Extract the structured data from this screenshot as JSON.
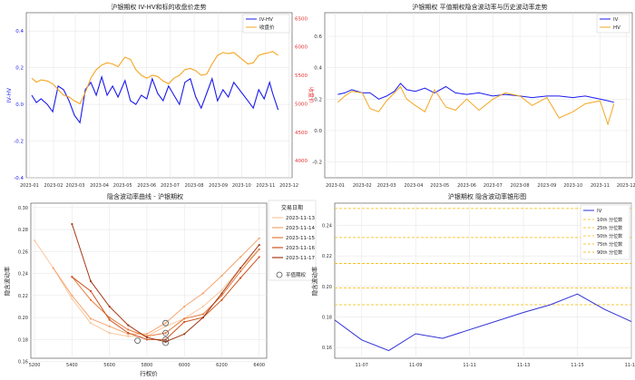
{
  "chart_data": [
    {
      "type": "line",
      "title": "沪银期权 IV-HV和标的收盘价走势",
      "xlabel": "",
      "ylabel": "IV-HV",
      "y2label": "收盘价",
      "ylim": [
        -0.4,
        0.5
      ],
      "yticks": [
        -0.4,
        -0.2,
        0.0,
        0.2,
        0.4
      ],
      "y2lim": [
        3700,
        6600
      ],
      "y2ticks": [
        4000,
        4500,
        5000,
        5500,
        6000,
        6500
      ],
      "xlim": [
        "2022-12-28",
        "2023-12-05"
      ],
      "xticks": [
        "2023-01",
        "2023-02",
        "2023-03",
        "2023-04",
        "2023-05",
        "2023-06",
        "2023-07",
        "2023-08",
        "2023-09",
        "2023-10",
        "2023-11",
        "2023-12"
      ],
      "grid": true,
      "legend": "top-right",
      "series": [
        {
          "name": "IV-HV",
          "color": "#1a1aee",
          "axis": "left",
          "x": [
            "2023-01-04",
            "2023-01-10",
            "2023-01-16",
            "2023-01-24",
            "2023-01-31",
            "2023-02-07",
            "2023-02-14",
            "2023-02-21",
            "2023-02-28",
            "2023-03-07",
            "2023-03-14",
            "2023-03-21",
            "2023-03-28",
            "2023-04-04",
            "2023-04-11",
            "2023-04-18",
            "2023-04-25",
            "2023-05-04",
            "2023-05-11",
            "2023-05-18",
            "2023-05-25",
            "2023-06-01",
            "2023-06-08",
            "2023-06-15",
            "2023-06-22",
            "2023-06-29",
            "2023-07-06",
            "2023-07-13",
            "2023-07-20",
            "2023-07-27",
            "2023-08-03",
            "2023-08-10",
            "2023-08-17",
            "2023-08-24",
            "2023-08-31",
            "2023-09-07",
            "2023-09-14",
            "2023-09-21",
            "2023-10-09",
            "2023-10-16",
            "2023-10-23",
            "2023-10-30",
            "2023-11-06",
            "2023-11-10",
            "2023-11-17"
          ],
          "values": [
            0.05,
            0.01,
            0.03,
            0.0,
            -0.04,
            0.1,
            0.08,
            0.02,
            -0.06,
            -0.1,
            0.08,
            0.12,
            0.05,
            0.15,
            0.05,
            0.1,
            0.04,
            0.13,
            0.02,
            0.0,
            0.05,
            0.03,
            0.14,
            0.06,
            0.02,
            0.1,
            0.05,
            0.0,
            0.12,
            0.14,
            0.04,
            -0.02,
            0.06,
            0.14,
            0.02,
            0.08,
            0.04,
            0.12,
            0.02,
            -0.02,
            0.08,
            0.03,
            0.12,
            0.06,
            -0.03
          ]
        },
        {
          "name": "收盘价",
          "color": "#f5a623",
          "axis": "right",
          "x": [
            "2023-01-04",
            "2023-01-10",
            "2023-01-16",
            "2023-01-24",
            "2023-01-31",
            "2023-02-07",
            "2023-02-14",
            "2023-02-21",
            "2023-02-28",
            "2023-03-07",
            "2023-03-14",
            "2023-03-21",
            "2023-03-28",
            "2023-04-04",
            "2023-04-11",
            "2023-04-18",
            "2023-04-25",
            "2023-05-04",
            "2023-05-11",
            "2023-05-18",
            "2023-05-25",
            "2023-06-01",
            "2023-06-08",
            "2023-06-15",
            "2023-06-22",
            "2023-06-29",
            "2023-07-06",
            "2023-07-13",
            "2023-07-20",
            "2023-07-27",
            "2023-08-03",
            "2023-08-10",
            "2023-08-17",
            "2023-08-24",
            "2023-08-31",
            "2023-09-07",
            "2023-09-14",
            "2023-09-21",
            "2023-10-09",
            "2023-10-16",
            "2023-10-23",
            "2023-10-30",
            "2023-11-06",
            "2023-11-10",
            "2023-11-17"
          ],
          "values": [
            5450,
            5380,
            5420,
            5400,
            5350,
            5250,
            5150,
            5120,
            5050,
            5000,
            5200,
            5450,
            5600,
            5680,
            5720,
            5700,
            5650,
            5820,
            5780,
            5600,
            5500,
            5450,
            5500,
            5480,
            5400,
            5350,
            5450,
            5500,
            5600,
            5620,
            5580,
            5500,
            5520,
            5700,
            5850,
            5900,
            5880,
            5900,
            5700,
            5720,
            5850,
            5880,
            5900,
            5920,
            5850
          ]
        }
      ]
    },
    {
      "type": "line",
      "title": "沪银期权 平值期权隐含波动率与历史波动率走势",
      "xlabel": "",
      "ylabel": "",
      "ylim": [
        -0.3,
        0.75
      ],
      "yticks": [
        -0.2,
        0.0,
        0.2,
        0.4,
        0.6
      ],
      "xlim": [
        "2022-12-20",
        "2023-12-08"
      ],
      "xticks": [
        "2023-01",
        "2023-02",
        "2023-03",
        "2023-04",
        "2023-05",
        "2023-06",
        "2023-07",
        "2023-08",
        "2023-09",
        "2023-10",
        "2023-11",
        "2023-12"
      ],
      "grid": true,
      "legend": "top-right",
      "series": [
        {
          "name": "IV",
          "color": "#1a1aee",
          "x": [
            "2023-01-04",
            "2023-01-12",
            "2023-01-20",
            "2023-02-01",
            "2023-02-10",
            "2023-02-20",
            "2023-03-01",
            "2023-03-10",
            "2023-03-17",
            "2023-03-24",
            "2023-04-03",
            "2023-04-14",
            "2023-04-25",
            "2023-05-08",
            "2023-05-19",
            "2023-06-01",
            "2023-06-15",
            "2023-07-01",
            "2023-07-15",
            "2023-08-01",
            "2023-08-15",
            "2023-09-01",
            "2023-09-15",
            "2023-10-01",
            "2023-10-15",
            "2023-11-01",
            "2023-11-10",
            "2023-11-17"
          ],
          "values": [
            0.23,
            0.24,
            0.26,
            0.24,
            0.24,
            0.2,
            0.22,
            0.25,
            0.3,
            0.26,
            0.25,
            0.27,
            0.24,
            0.28,
            0.24,
            0.23,
            0.24,
            0.22,
            0.23,
            0.22,
            0.21,
            0.22,
            0.22,
            0.21,
            0.22,
            0.2,
            0.19,
            0.18
          ]
        },
        {
          "name": "HV",
          "color": "#f5a623",
          "x": [
            "2023-01-04",
            "2023-01-12",
            "2023-01-20",
            "2023-02-01",
            "2023-02-10",
            "2023-02-20",
            "2023-03-01",
            "2023-03-10",
            "2023-03-17",
            "2023-03-24",
            "2023-04-03",
            "2023-04-14",
            "2023-04-25",
            "2023-05-08",
            "2023-05-19",
            "2023-06-01",
            "2023-06-15",
            "2023-07-01",
            "2023-07-15",
            "2023-08-01",
            "2023-08-15",
            "2023-09-01",
            "2023-09-15",
            "2023-10-01",
            "2023-10-15",
            "2023-11-01",
            "2023-11-10",
            "2023-11-17"
          ],
          "values": [
            0.18,
            0.22,
            0.25,
            0.24,
            0.14,
            0.12,
            0.19,
            0.24,
            0.28,
            0.2,
            0.16,
            0.12,
            0.26,
            0.15,
            0.13,
            0.2,
            0.13,
            0.2,
            0.24,
            0.22,
            0.16,
            0.21,
            0.08,
            0.12,
            0.17,
            0.19,
            0.04,
            0.17
          ]
        }
      ]
    },
    {
      "type": "line",
      "title": "隐含波动率曲线 - 沪银期权",
      "xlabel": "行权价",
      "ylabel": "隐含波动率",
      "xlim": [
        5180,
        6440
      ],
      "xticks": [
        5200,
        5400,
        5600,
        5800,
        6000,
        6200,
        6400
      ],
      "ylim": [
        0.163,
        0.304
      ],
      "yticks": [
        0.16,
        0.18,
        0.2,
        0.22,
        0.24,
        0.26,
        0.28,
        0.3
      ],
      "grid": true,
      "legend_title": "交易日期",
      "legend": "top-right",
      "atm_label": "平值期权",
      "series": [
        {
          "name": "2023-11-13",
          "color": "#f9c79d",
          "x": [
            5200,
            5300,
            5400,
            5500,
            5600,
            5700,
            5800,
            5900,
            6000,
            6100,
            6200,
            6300,
            6400
          ],
          "y": [
            0.27,
            0.245,
            0.217,
            0.195,
            0.186,
            0.183,
            0.183,
            0.192,
            0.199,
            0.21,
            0.225,
            0.245,
            0.262
          ],
          "atm": [
            5750,
            0.179
          ]
        },
        {
          "name": "2023-11-14",
          "color": "#f6a56e",
          "x": [
            5300,
            5400,
            5500,
            5600,
            5700,
            5800,
            5900,
            6000,
            6100,
            6200,
            6300,
            6400
          ],
          "y": [
            0.245,
            0.22,
            0.199,
            0.192,
            0.185,
            0.185,
            0.195,
            0.21,
            0.222,
            0.238,
            0.255,
            0.272
          ],
          "atm": [
            5900,
            0.195
          ]
        },
        {
          "name": "2023-11-15",
          "color": "#e57b3b",
          "x": [
            5400,
            5500,
            5600,
            5700,
            5800,
            5900,
            6000,
            6100,
            6200,
            6300,
            6400
          ],
          "y": [
            0.237,
            0.216,
            0.2,
            0.189,
            0.183,
            0.186,
            0.199,
            0.203,
            0.22,
            0.242,
            0.262
          ],
          "atm": [
            5900,
            0.186
          ]
        },
        {
          "name": "2023-11-16",
          "color": "#cc5522",
          "x": [
            5400,
            5500,
            5600,
            5700,
            5800,
            5900,
            6000,
            6100,
            6200,
            6300,
            6400
          ],
          "y": [
            0.237,
            0.224,
            0.198,
            0.186,
            0.18,
            0.18,
            0.196,
            0.2,
            0.216,
            0.236,
            0.255
          ],
          "atm": [
            5900,
            0.18
          ]
        },
        {
          "name": "2023-11-17",
          "color": "#a33a17",
          "x": [
            5400,
            5500,
            5600,
            5700,
            5800,
            5900,
            6000,
            6100,
            6200,
            6300,
            6400
          ],
          "y": [
            0.285,
            0.233,
            0.21,
            0.193,
            0.182,
            0.178,
            0.185,
            0.2,
            0.222,
            0.245,
            0.266
          ],
          "atm": [
            5900,
            0.177
          ]
        }
      ]
    },
    {
      "type": "line",
      "title": "沪银期权 隐含波动率锥形图",
      "xlabel": "",
      "ylabel": "隐含波动率",
      "xlim": [
        "2023-11-06",
        "2023-11-17"
      ],
      "xticks": [
        "11-07",
        "11-09",
        "11-11",
        "11-13",
        "11-15",
        "11-17"
      ],
      "ylim": [
        0.153,
        0.2545
      ],
      "yticks": [
        0.16,
        0.18,
        0.2,
        0.22,
        0.24
      ],
      "grid": true,
      "legend": "top-right",
      "series": [
        {
          "name": "IV",
          "color": "#3030d8",
          "x": [
            "2023-11-06",
            "2023-11-07",
            "2023-11-08",
            "2023-11-09",
            "2023-11-10",
            "2023-11-13",
            "2023-11-14",
            "2023-11-15",
            "2023-11-16",
            "2023-11-17"
          ],
          "y": [
            0.178,
            0.165,
            0.158,
            0.169,
            0.166,
            0.183,
            0.188,
            0.195,
            0.185,
            0.177
          ]
        }
      ],
      "percentiles": [
        {
          "name": "10th 分位数",
          "value": 0.188
        },
        {
          "name": "25th 分位数",
          "value": 0.199
        },
        {
          "name": "50th 分位数",
          "value": 0.215
        },
        {
          "name": "75th 分位数",
          "value": 0.232
        },
        {
          "name": "90th 分位数",
          "value": 0.251
        }
      ],
      "percentile_color": "#f5b800"
    }
  ]
}
